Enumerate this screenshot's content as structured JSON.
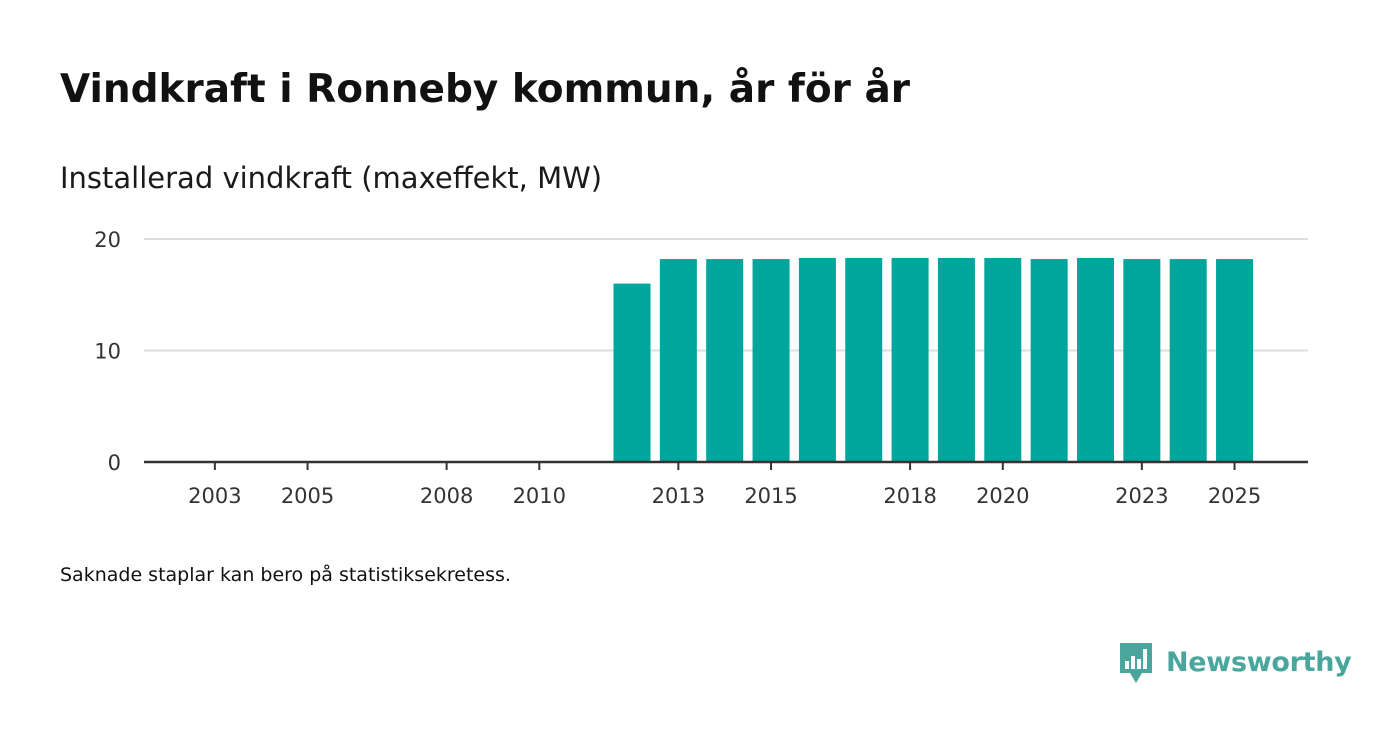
{
  "title": "Vindkraft i Ronneby kommun, år för år",
  "subtitle": "Installerad vindkraft (maxeffekt, MW)",
  "footnote": "Saknade staplar kan bero på statistiksekretess.",
  "brand": {
    "name": "Newsworthy",
    "color": "#4aa69c"
  },
  "colors": {
    "bar": "#00a59b",
    "grid": "#dddddd",
    "axis": "#333333",
    "text": "#333333"
  },
  "chart_data": {
    "type": "bar",
    "title": "Installerad vindkraft (maxeffekt, MW)",
    "xlabel": "",
    "ylabel": "",
    "ylim": [
      0,
      20
    ],
    "xlim": [
      2002,
      2026
    ],
    "yticks": [
      0,
      10,
      20
    ],
    "xticks": [
      2003,
      2005,
      2008,
      2010,
      2013,
      2015,
      2018,
      2020,
      2023,
      2025
    ],
    "grid": true,
    "categories": [
      2012,
      2013,
      2014,
      2015,
      2016,
      2017,
      2018,
      2019,
      2020,
      2021,
      2022,
      2023,
      2024,
      2025
    ],
    "values": [
      16.0,
      18.2,
      18.2,
      18.2,
      18.3,
      18.3,
      18.3,
      18.3,
      18.3,
      18.2,
      18.3,
      18.2,
      18.2,
      18.2
    ]
  }
}
